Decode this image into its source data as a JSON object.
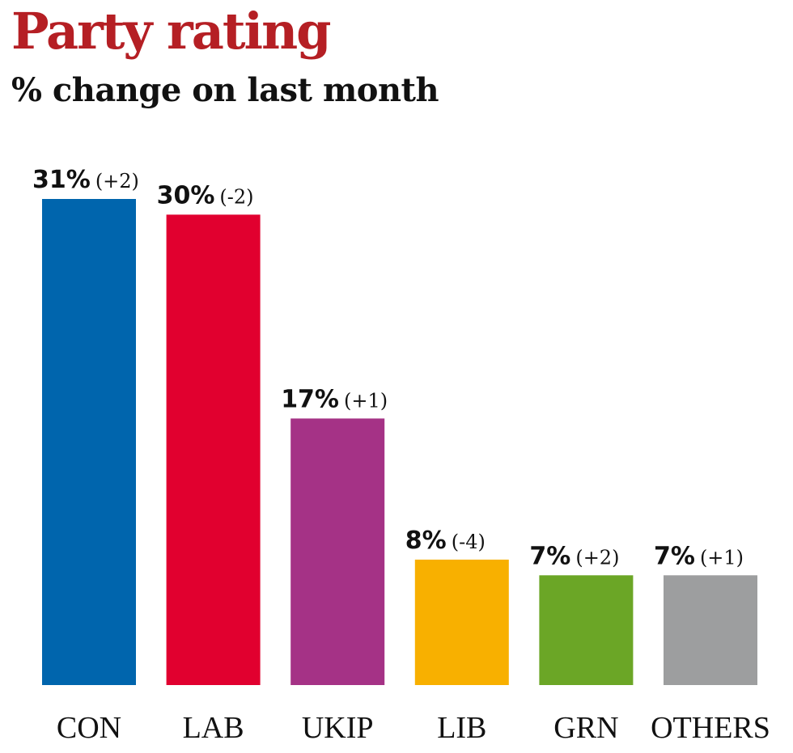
{
  "chart_data": {
    "type": "bar",
    "title": "Party rating",
    "subtitle": "% change on last month",
    "xlabel": "",
    "ylabel": "",
    "ylim": [
      0,
      31
    ],
    "grid": false,
    "legend": "none",
    "categories": [
      "CON",
      "LAB",
      "UKIP",
      "LIB",
      "GRN",
      "OTHERS"
    ],
    "values": [
      31,
      30,
      17,
      8,
      7,
      7
    ],
    "value_labels": [
      "31%",
      "30%",
      "17%",
      "8%",
      "7%",
      "7%"
    ],
    "changes": [
      2,
      -2,
      1,
      -4,
      2,
      1
    ],
    "change_labels": [
      "(+2)",
      "(-2)",
      "(+1)",
      "(-4)",
      "(+2)",
      "(+1)"
    ],
    "colors": [
      "#0065ad",
      "#e1002f",
      "#a53286",
      "#f8b000",
      "#6ba626",
      "#9d9e9f"
    ]
  }
}
